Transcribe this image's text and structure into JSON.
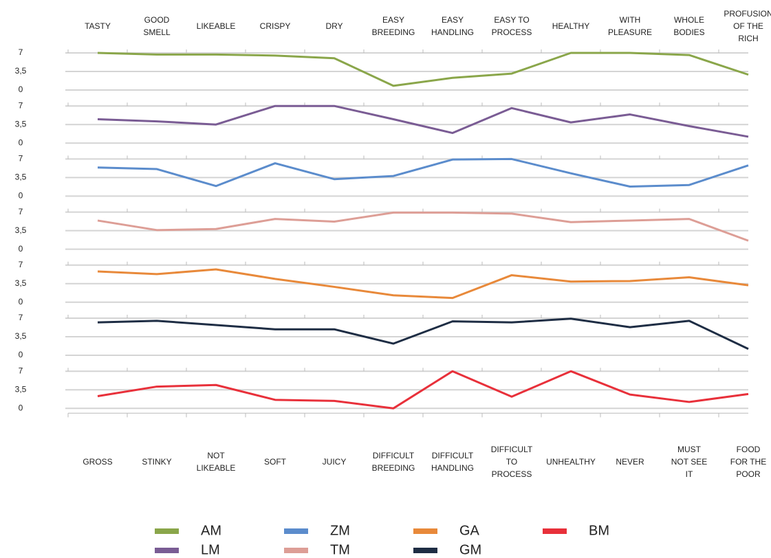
{
  "chart_data": {
    "type": "line",
    "top_labels": [
      [
        "TASTY"
      ],
      [
        "GOOD",
        "SMELL"
      ],
      [
        "LIKEABLE"
      ],
      [
        "CRISPY"
      ],
      [
        "DRY"
      ],
      [
        "EASY",
        "BREEDING"
      ],
      [
        "EASY",
        "HANDLING"
      ],
      [
        "EASY  TO",
        "PROCESS"
      ],
      [
        "HEALTHY"
      ],
      [
        "WITH",
        "PLEASURE"
      ],
      [
        "WHOLE",
        "BODIES"
      ],
      [
        "PROFUSION",
        "OF THE",
        "RICH"
      ]
    ],
    "bottom_labels": [
      [
        "GROSS"
      ],
      [
        "STINKY"
      ],
      [
        "NOT",
        "LIKEABLE"
      ],
      [
        "SOFT"
      ],
      [
        "JUICY"
      ],
      [
        "DIFFICULT",
        "BREEDING"
      ],
      [
        "DIFFICULT",
        "HANDLING"
      ],
      [
        "DIFFICULT",
        "TO",
        "PROCESS"
      ],
      [
        "UNHEALTHY"
      ],
      [
        "NEVER"
      ],
      [
        "MUST",
        "NOT SEE",
        "IT"
      ],
      [
        "FOOD",
        "FOR THE",
        "POOR"
      ]
    ],
    "ylim": [
      0,
      7
    ],
    "yticks": [
      {
        "value": 7,
        "label": "7"
      },
      {
        "value": 3.5,
        "label": "3,5"
      },
      {
        "value": 0,
        "label": "0"
      }
    ],
    "grid": true,
    "series": [
      {
        "name": "AM",
        "color": "#8aa64a",
        "values": [
          7,
          6.7,
          6.7,
          6.5,
          6.0,
          0.8,
          2.3,
          3.1,
          7,
          7,
          6.6,
          2.9
        ]
      },
      {
        "name": "LM",
        "color": "#7a5c94",
        "values": [
          4.5,
          4.1,
          3.5,
          7,
          7,
          4.5,
          1.9,
          6.6,
          3.9,
          5.4,
          3.2,
          1.2
        ]
      },
      {
        "name": "ZM",
        "color": "#5b8ccc",
        "values": [
          5.4,
          5.1,
          1.9,
          6.2,
          3.2,
          3.8,
          6.9,
          7,
          4.3,
          1.8,
          2.1,
          5.8
        ]
      },
      {
        "name": "TM",
        "color": "#dd9e96",
        "values": [
          5.4,
          3.6,
          3.8,
          5.7,
          5.2,
          6.9,
          6.9,
          6.7,
          5.1,
          5.4,
          5.7,
          1.6
        ]
      },
      {
        "name": "GA",
        "color": "#e8893a",
        "values": [
          5.8,
          5.3,
          6.2,
          4.4,
          2.9,
          1.3,
          0.8,
          5.1,
          3.9,
          4.0,
          4.7,
          3.2
        ]
      },
      {
        "name": "GM",
        "color": "#1e2d44",
        "values": [
          6.2,
          6.5,
          5.7,
          4.9,
          4.9,
          2.2,
          6.4,
          6.2,
          6.9,
          5.3,
          6.5,
          1.2
        ]
      },
      {
        "name": "BM",
        "color": "#e8303a",
        "values": [
          2.3,
          4.1,
          4.4,
          1.6,
          1.4,
          0,
          7,
          2.2,
          7,
          2.6,
          1.2,
          2.7
        ]
      }
    ]
  }
}
